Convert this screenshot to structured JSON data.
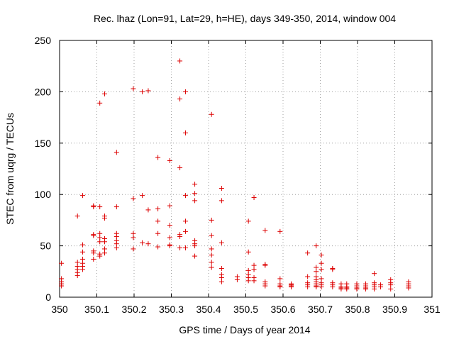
{
  "chart_data": {
    "type": "scatter",
    "title": "Rec. lhaz (Lon=91, Lat=29, h=HE), days 349-350, 2014, window 004",
    "xlabel": "GPS time / Days of year 2014",
    "ylabel": "STEC from uqrg / TECUs",
    "xlim": [
      350,
      351
    ],
    "ylim": [
      0,
      250
    ],
    "x_ticks": [
      "350",
      "350.1",
      "350.2",
      "350.3",
      "350.4",
      "350.5",
      "350.6",
      "350.7",
      "350.8",
      "350.9",
      "351"
    ],
    "y_ticks": [
      "0",
      "50",
      "100",
      "150",
      "200",
      "250"
    ],
    "grid": true,
    "marker": "+",
    "color": "#dd0000",
    "series": [
      {
        "points": [
          [
            350.005,
            33
          ],
          [
            350.005,
            18
          ],
          [
            350.005,
            15
          ],
          [
            350.005,
            13
          ],
          [
            350.005,
            11
          ],
          [
            350.048,
            79
          ],
          [
            350.048,
            34
          ],
          [
            350.048,
            30
          ],
          [
            350.048,
            27
          ],
          [
            350.048,
            24
          ],
          [
            350.048,
            21
          ],
          [
            350.062,
            99
          ],
          [
            350.062,
            51
          ],
          [
            350.062,
            44
          ],
          [
            350.062,
            37
          ],
          [
            350.062,
            33
          ],
          [
            350.062,
            30
          ],
          [
            350.062,
            27
          ],
          [
            350.091,
            89
          ],
          [
            350.091,
            88
          ],
          [
            350.091,
            61
          ],
          [
            350.091,
            60
          ],
          [
            350.091,
            45
          ],
          [
            350.091,
            43
          ],
          [
            350.091,
            37
          ],
          [
            350.108,
            189
          ],
          [
            350.108,
            88
          ],
          [
            350.108,
            62
          ],
          [
            350.108,
            58
          ],
          [
            350.108,
            54
          ],
          [
            350.108,
            42
          ],
          [
            350.108,
            40
          ],
          [
            350.121,
            198
          ],
          [
            350.121,
            79
          ],
          [
            350.121,
            77
          ],
          [
            350.121,
            57
          ],
          [
            350.121,
            54
          ],
          [
            350.121,
            47
          ],
          [
            350.121,
            43
          ],
          [
            350.153,
            141
          ],
          [
            350.153,
            88
          ],
          [
            350.153,
            62
          ],
          [
            350.153,
            59
          ],
          [
            350.153,
            55
          ],
          [
            350.153,
            52
          ],
          [
            350.153,
            48
          ],
          [
            350.198,
            203
          ],
          [
            350.198,
            96
          ],
          [
            350.198,
            62
          ],
          [
            350.198,
            58
          ],
          [
            350.198,
            47
          ],
          [
            350.222,
            200
          ],
          [
            350.222,
            99
          ],
          [
            350.222,
            53
          ],
          [
            350.238,
            201
          ],
          [
            350.238,
            85
          ],
          [
            350.238,
            52
          ],
          [
            350.264,
            136
          ],
          [
            350.264,
            86
          ],
          [
            350.264,
            74
          ],
          [
            350.264,
            62
          ],
          [
            350.264,
            49
          ],
          [
            350.296,
            133
          ],
          [
            350.296,
            89
          ],
          [
            350.296,
            70
          ],
          [
            350.296,
            58
          ],
          [
            350.296,
            51
          ],
          [
            350.296,
            50
          ],
          [
            350.323,
            230
          ],
          [
            350.323,
            193
          ],
          [
            350.323,
            126
          ],
          [
            350.323,
            61
          ],
          [
            350.323,
            59
          ],
          [
            350.323,
            48
          ],
          [
            350.338,
            200
          ],
          [
            350.338,
            160
          ],
          [
            350.338,
            99
          ],
          [
            350.338,
            74
          ],
          [
            350.338,
            64
          ],
          [
            350.338,
            48
          ],
          [
            350.363,
            110
          ],
          [
            350.363,
            101
          ],
          [
            350.363,
            94
          ],
          [
            350.363,
            55
          ],
          [
            350.363,
            52
          ],
          [
            350.363,
            50
          ],
          [
            350.363,
            40
          ],
          [
            350.408,
            178
          ],
          [
            350.408,
            75
          ],
          [
            350.408,
            60
          ],
          [
            350.408,
            47
          ],
          [
            350.408,
            41
          ],
          [
            350.408,
            34
          ],
          [
            350.408,
            29
          ],
          [
            350.435,
            106
          ],
          [
            350.435,
            94
          ],
          [
            350.435,
            53
          ],
          [
            350.435,
            28
          ],
          [
            350.435,
            22
          ],
          [
            350.435,
            19
          ],
          [
            350.435,
            15
          ],
          [
            350.477,
            20
          ],
          [
            350.477,
            17
          ],
          [
            350.507,
            74
          ],
          [
            350.507,
            44
          ],
          [
            350.507,
            26
          ],
          [
            350.507,
            22
          ],
          [
            350.507,
            19
          ],
          [
            350.507,
            16
          ],
          [
            350.522,
            97
          ],
          [
            350.522,
            31
          ],
          [
            350.522,
            27
          ],
          [
            350.522,
            19
          ],
          [
            350.522,
            16
          ],
          [
            350.552,
            65
          ],
          [
            350.552,
            32
          ],
          [
            350.552,
            31
          ],
          [
            350.552,
            15
          ],
          [
            350.552,
            13
          ],
          [
            350.552,
            11
          ],
          [
            350.592,
            64
          ],
          [
            350.592,
            18
          ],
          [
            350.592,
            13
          ],
          [
            350.592,
            11
          ],
          [
            350.592,
            10
          ],
          [
            350.622,
            13
          ],
          [
            350.622,
            12
          ],
          [
            350.622,
            11
          ],
          [
            350.622,
            10
          ],
          [
            350.666,
            43
          ],
          [
            350.666,
            20
          ],
          [
            350.666,
            14
          ],
          [
            350.666,
            12
          ],
          [
            350.666,
            10
          ],
          [
            350.689,
            50
          ],
          [
            350.689,
            29
          ],
          [
            350.689,
            25
          ],
          [
            350.689,
            20
          ],
          [
            350.689,
            17
          ],
          [
            350.689,
            15
          ],
          [
            350.689,
            13
          ],
          [
            350.689,
            11
          ],
          [
            350.689,
            10
          ],
          [
            350.703,
            41
          ],
          [
            350.703,
            33
          ],
          [
            350.703,
            27
          ],
          [
            350.703,
            18
          ],
          [
            350.703,
            14
          ],
          [
            350.703,
            12
          ],
          [
            350.703,
            10
          ],
          [
            350.733,
            28
          ],
          [
            350.733,
            27
          ],
          [
            350.733,
            14
          ],
          [
            350.733,
            12
          ],
          [
            350.733,
            10
          ],
          [
            350.756,
            13
          ],
          [
            350.756,
            10
          ],
          [
            350.756,
            9
          ],
          [
            350.756,
            8
          ],
          [
            350.771,
            13
          ],
          [
            350.771,
            10
          ],
          [
            350.771,
            9
          ],
          [
            350.771,
            8
          ],
          [
            350.798,
            13
          ],
          [
            350.798,
            11
          ],
          [
            350.798,
            9
          ],
          [
            350.798,
            8
          ],
          [
            350.822,
            13
          ],
          [
            350.822,
            11
          ],
          [
            350.822,
            9
          ],
          [
            350.822,
            8
          ],
          [
            350.845,
            23
          ],
          [
            350.845,
            14
          ],
          [
            350.845,
            12
          ],
          [
            350.845,
            10
          ],
          [
            350.845,
            8
          ],
          [
            350.862,
            12
          ],
          [
            350.862,
            10
          ],
          [
            350.889,
            17
          ],
          [
            350.889,
            14
          ],
          [
            350.889,
            12
          ],
          [
            350.889,
            8
          ],
          [
            350.937,
            15
          ],
          [
            350.937,
            13
          ],
          [
            350.937,
            11
          ],
          [
            350.937,
            9
          ]
        ]
      }
    ]
  }
}
